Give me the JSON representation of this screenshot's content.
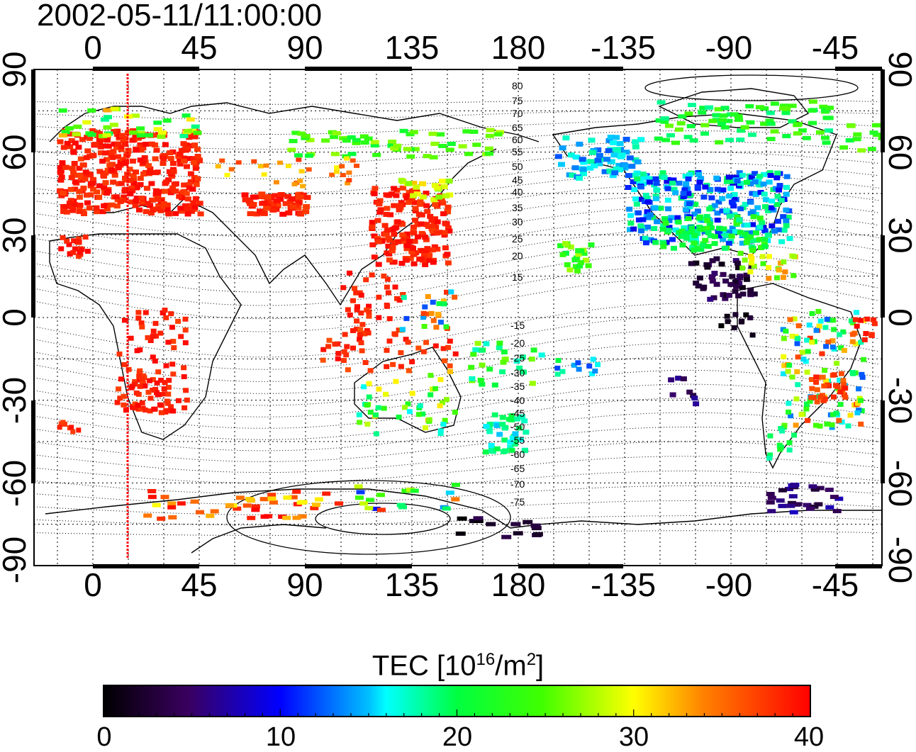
{
  "title": "2002-05-11/11:00:00",
  "map": {
    "lon_ticks": [
      "0",
      "45",
      "90",
      "135",
      "180",
      "-135",
      "-90",
      "-45"
    ],
    "lat_ticks": [
      "90",
      "60",
      "30",
      "0",
      "-30",
      "-60",
      "-90"
    ],
    "contour_labels_north": [
      "80",
      "75",
      "70",
      "65",
      "60",
      "55",
      "50",
      "45",
      "40",
      "35",
      "30",
      "25",
      "20",
      "15"
    ],
    "contour_labels_south": [
      "-15",
      "-20",
      "-25",
      "-30",
      "-35",
      "-40",
      "-45",
      "-50",
      "-55",
      "-60",
      "-65",
      "-70",
      "-75"
    ],
    "terminator_color": "#ff0000"
  },
  "colorbar": {
    "title": "TEC  [10",
    "title_exp": "16",
    "title_unit": "/m",
    "title_unit_exp": "2",
    "title_close": "]",
    "ticks": [
      "0",
      "10",
      "20",
      "30",
      "40"
    ],
    "range": [
      0,
      40
    ]
  }
}
